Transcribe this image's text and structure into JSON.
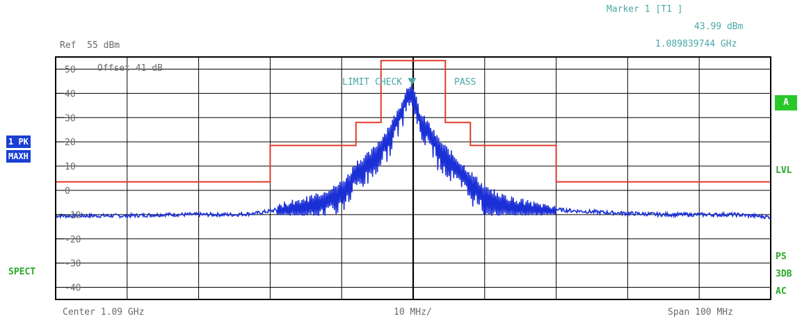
{
  "marker": {
    "title": "Marker 1 [T1 ]",
    "level": "43.99 dBm",
    "freq": "1.089839744 GHz"
  },
  "header": {
    "ref": "Ref  55 dBm",
    "offset": "Offset  41 dB"
  },
  "annotations": {
    "limit_check": "LIMIT CHECK",
    "pass": "PASS"
  },
  "left_labels": {
    "pk": "1 PK",
    "maxh": "MAXH",
    "spect": "SPECT"
  },
  "right_labels": {
    "a": "A",
    "lvl": "LVL",
    "ps": "PS",
    "db3": "3DB",
    "ac": "AC"
  },
  "footer": {
    "center": "Center 1.09 GHz",
    "div": "10 MHz/",
    "span": "Span 100 MHz"
  },
  "colors": {
    "trace": "#1a2fd6",
    "limit": "#e23a2a",
    "grid": "#000000",
    "teal": "#4aa6a6"
  },
  "chart_data": {
    "type": "line",
    "xlabel": "",
    "ylabel": "",
    "xlim": [
      1.04,
      1.14
    ],
    "ylim": [
      -45,
      55
    ],
    "y_ticks": [
      50,
      40,
      30,
      20,
      10,
      0,
      -10,
      -20,
      -30,
      -40
    ],
    "y_tick_labels": [
      "50",
      "40",
      "30",
      "20",
      "10",
      "0",
      "-10",
      "-20",
      "-30",
      "-40"
    ],
    "grid": true,
    "series": [
      {
        "role": "limit line",
        "x": [
          1.04,
          1.07,
          1.07,
          1.082,
          1.082,
          1.0855,
          1.0855,
          1.0945,
          1.0945,
          1.098,
          1.098,
          1.11,
          1.11,
          1.14
        ],
        "values": [
          3.5,
          3.5,
          18.5,
          18.5,
          28,
          28,
          53.5,
          53.5,
          28,
          28,
          18.5,
          18.5,
          3.5,
          3.5
        ]
      },
      {
        "role": "trace",
        "x": [
          1.04,
          1.045,
          1.05,
          1.055,
          1.06,
          1.065,
          1.068,
          1.071,
          1.073,
          1.075,
          1.077,
          1.079,
          1.08,
          1.081,
          1.082,
          1.083,
          1.084,
          1.085,
          1.086,
          1.087,
          1.088,
          1.0885,
          1.089,
          1.0895,
          1.0898,
          1.09,
          1.0905,
          1.091,
          1.092,
          1.093,
          1.094,
          1.095,
          1.096,
          1.097,
          1.098,
          1.099,
          1.1,
          1.102,
          1.104,
          1.107,
          1.11,
          1.113,
          1.116,
          1.12,
          1.125,
          1.13,
          1.135,
          1.14
        ],
        "values": [
          -10.5,
          -10.5,
          -10.5,
          -10,
          -10,
          -10,
          -9.5,
          -8,
          -6,
          -5,
          -3,
          0,
          2,
          5,
          10,
          12,
          14,
          18,
          22,
          27,
          32,
          36,
          40,
          42,
          44,
          40,
          36,
          30,
          27,
          22,
          18,
          15,
          12,
          9,
          6,
          3,
          0,
          -3,
          -5,
          -7,
          -8,
          -8.5,
          -9,
          -9.5,
          -10,
          -10,
          -10,
          -11
        ]
      }
    ],
    "marker": {
      "x": 1.089839744,
      "y": 43.99,
      "label": "1"
    }
  }
}
